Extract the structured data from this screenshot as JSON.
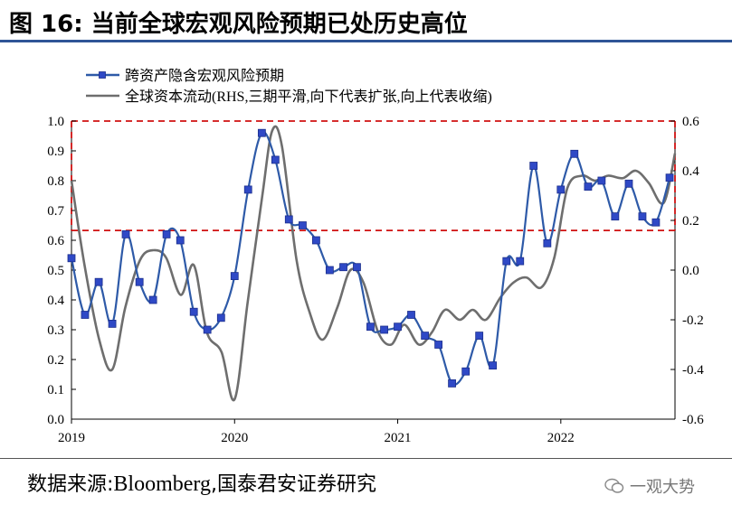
{
  "figure": {
    "label": "图 16:",
    "title": "当前全球宏观风险预期已处历史高位"
  },
  "source": {
    "prefix": "数据来源:",
    "name": "Bloomberg",
    "suffix": ",国泰君安证券研究"
  },
  "watermark": {
    "text": "一观大势",
    "icon": "wechat-icon"
  },
  "colors": {
    "series1": "#2e5aa8",
    "marker": "#2f49c6",
    "series2": "#6e6e6e",
    "threshold": "#d01010",
    "rule": "#2f5597"
  },
  "chart_data": {
    "type": "line",
    "x_ticks": [
      "2019",
      "2020",
      "2021",
      "2022"
    ],
    "x_tick_positions": [
      2019.0,
      2020.0,
      2021.0,
      2022.0
    ],
    "xlim": [
      2019.0,
      2022.7
    ],
    "ylim_left": [
      0.0,
      1.0
    ],
    "ylim_right": [
      -0.6,
      0.6
    ],
    "left_ticks": [
      "0.0",
      "0.1",
      "0.2",
      "0.3",
      "0.4",
      "0.5",
      "0.6",
      "0.7",
      "0.8",
      "0.9",
      "1.0"
    ],
    "right_ticks": [
      "-0.6",
      "-0.4",
      "-0.2",
      "0.0",
      "0.2",
      "0.4",
      "0.6"
    ],
    "thresholds_left": [
      0.633,
      1.0
    ],
    "legend_position": "top-left",
    "series": [
      {
        "name": "跨资产隐含宏观风险预期",
        "axis": "left",
        "marker": "square",
        "x": [
          2019.0,
          2019.083,
          2019.167,
          2019.25,
          2019.333,
          2019.417,
          2019.5,
          2019.583,
          2019.667,
          2019.75,
          2019.833,
          2019.917,
          2020.0,
          2020.083,
          2020.167,
          2020.25,
          2020.333,
          2020.417,
          2020.5,
          2020.583,
          2020.667,
          2020.75,
          2020.833,
          2020.917,
          2021.0,
          2021.083,
          2021.167,
          2021.25,
          2021.333,
          2021.417,
          2021.5,
          2021.583,
          2021.667,
          2021.75,
          2021.833,
          2021.917,
          2022.0,
          2022.083,
          2022.167,
          2022.25,
          2022.333,
          2022.417,
          2022.5,
          2022.583,
          2022.667
        ],
        "values": [
          0.54,
          0.35,
          0.46,
          0.32,
          0.62,
          0.46,
          0.4,
          0.62,
          0.6,
          0.36,
          0.3,
          0.34,
          0.48,
          0.77,
          0.96,
          0.87,
          0.67,
          0.65,
          0.6,
          0.5,
          0.51,
          0.51,
          0.31,
          0.3,
          0.31,
          0.35,
          0.28,
          0.25,
          0.12,
          0.16,
          0.28,
          0.18,
          0.53,
          0.53,
          0.85,
          0.59,
          0.77,
          0.89,
          0.78,
          0.8,
          0.68,
          0.79,
          0.68,
          0.66,
          0.81
        ]
      },
      {
        "name": "全球资本流动(RHS,三期平滑,向下代表扩张,向上代表收缩)",
        "axis": "right",
        "marker": "none",
        "x": [
          2019.0,
          2019.08,
          2019.17,
          2019.25,
          2019.33,
          2019.42,
          2019.5,
          2019.58,
          2019.67,
          2019.75,
          2019.83,
          2019.92,
          2020.0,
          2020.08,
          2020.17,
          2020.23,
          2020.29,
          2020.38,
          2020.46,
          2020.54,
          2020.63,
          2020.71,
          2020.79,
          2020.88,
          2020.96,
          2021.04,
          2021.13,
          2021.21,
          2021.29,
          2021.38,
          2021.46,
          2021.54,
          2021.63,
          2021.71,
          2021.79,
          2021.88,
          2021.96,
          2022.04,
          2022.13,
          2022.21,
          2022.29,
          2022.38,
          2022.46,
          2022.54,
          2022.63,
          2022.7
        ],
        "values": [
          0.36,
          0.02,
          -0.28,
          -0.4,
          -0.15,
          0.04,
          0.08,
          0.05,
          -0.1,
          0.02,
          -0.25,
          -0.33,
          -0.52,
          -0.13,
          0.3,
          0.56,
          0.5,
          0.04,
          -0.17,
          -0.28,
          -0.15,
          0.0,
          -0.05,
          -0.25,
          -0.3,
          -0.22,
          -0.3,
          -0.25,
          -0.16,
          -0.2,
          -0.16,
          -0.2,
          -0.11,
          -0.05,
          -0.03,
          -0.07,
          0.05,
          0.33,
          0.38,
          0.36,
          0.38,
          0.37,
          0.4,
          0.35,
          0.27,
          0.47
        ]
      }
    ]
  }
}
